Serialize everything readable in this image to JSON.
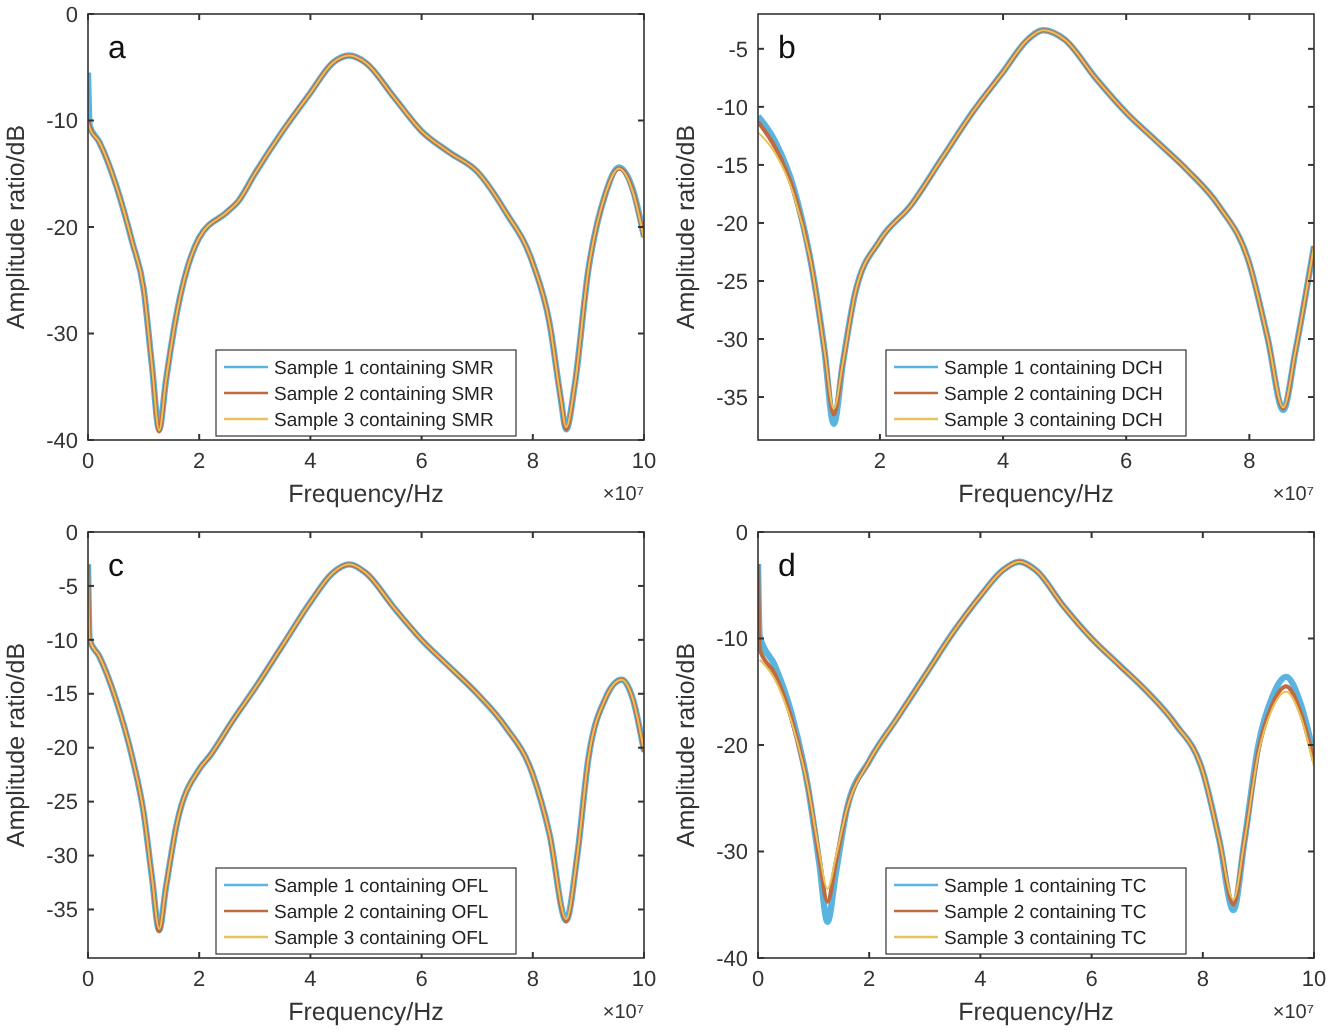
{
  "chart_data": [
    {
      "type": "line",
      "xlabel": "Frequency/Hz",
      "ylabel": "Amplitude ratio/dB",
      "annotations": [
        "a",
        "×10⁷"
      ],
      "legend": "bottom",
      "grid": false,
      "line_style": "solid",
      "xlim": [
        0,
        10
      ],
      "ylim": [
        -40,
        0
      ],
      "xticks": [
        0,
        2,
        4,
        6,
        8,
        10
      ],
      "yticks": [
        -40,
        -30,
        -20,
        -10,
        0
      ],
      "x": [
        0,
        0.03,
        0.2,
        0.5,
        0.8,
        1.0,
        1.15,
        1.28,
        1.4,
        1.6,
        2.0,
        2.5,
        2.7,
        3.0,
        3.5,
        4.0,
        4.4,
        4.7,
        5.0,
        5.5,
        6.0,
        6.5,
        7.0,
        7.5,
        8.0,
        8.3,
        8.5,
        8.6,
        8.75,
        9.0,
        9.3,
        9.55,
        9.8,
        10
      ],
      "series": [
        {
          "name": "Sample 1 containing SMR",
          "color": "#5ab4e0",
          "values": [
            -5.5,
            -10.5,
            -12,
            -16,
            -21.5,
            -25.8,
            -33,
            -39,
            -34.5,
            -28,
            -21,
            -18.6,
            -17.6,
            -15,
            -11,
            -7.4,
            -4.6,
            -3.9,
            -4.6,
            -7.8,
            -11,
            -13,
            -14.8,
            -18.5,
            -23.4,
            -29,
            -36,
            -39,
            -35,
            -24,
            -17,
            -14.4,
            -16.5,
            -20.9
          ]
        },
        {
          "name": "Sample 2 containing SMR",
          "color": "#c06a40",
          "values": [
            -10,
            -10.6,
            -12,
            -16,
            -21.5,
            -25.8,
            -33,
            -39.2,
            -34.5,
            -28,
            -21,
            -18.6,
            -17.6,
            -15,
            -11,
            -7.4,
            -4.6,
            -3.9,
            -4.6,
            -7.8,
            -11,
            -13,
            -14.8,
            -18.5,
            -23.4,
            -29,
            -36,
            -39,
            -35,
            -24,
            -17,
            -14.5,
            -16.6,
            -21
          ]
        },
        {
          "name": "Sample 3 containing SMR",
          "color": "#e8c25a",
          "values": [
            -10.2,
            -10.7,
            -12,
            -16,
            -21.5,
            -25.8,
            -33,
            -39.1,
            -34.5,
            -28,
            -21,
            -18.6,
            -17.6,
            -15,
            -11,
            -7.4,
            -4.6,
            -3.9,
            -4.6,
            -7.8,
            -11,
            -13,
            -14.8,
            -18.5,
            -23.4,
            -29,
            -36,
            -38.8,
            -35,
            -24,
            -17,
            -14.5,
            -16.7,
            -21.1
          ]
        }
      ]
    },
    {
      "type": "line",
      "xlabel": "Frequency/Hz",
      "ylabel": "Amplitude ratio/dB",
      "annotations": [
        "b",
        "×10⁷"
      ],
      "legend": "bottom",
      "grid": false,
      "line_style": "solid",
      "xlim": [
        0.02,
        9.05
      ],
      "ylim": [
        -38.7,
        -2
      ],
      "xticks": [
        2,
        4,
        6,
        8
      ],
      "yticks": [
        -35,
        -30,
        -25,
        -20,
        -15,
        -10,
        -5
      ],
      "x": [
        0.02,
        0.3,
        0.6,
        0.9,
        1.1,
        1.25,
        1.4,
        1.6,
        2.0,
        2.5,
        3.0,
        3.5,
        4.0,
        4.4,
        4.65,
        5.0,
        5.5,
        6.0,
        6.5,
        7.0,
        7.5,
        8.0,
        8.3,
        8.55,
        8.75,
        9.05
      ],
      "series": [
        {
          "name": "Sample 1 containing DCH",
          "color": "#5ab4e0",
          "values": [
            -10.8,
            -13,
            -17,
            -24,
            -31,
            -37.3,
            -32,
            -26,
            -21.5,
            -18.5,
            -14.5,
            -10.5,
            -7,
            -4.2,
            -3.4,
            -4.2,
            -7.5,
            -10.5,
            -13,
            -15.5,
            -18.5,
            -23.5,
            -30,
            -36.1,
            -31,
            -22
          ]
        },
        {
          "name": "Sample 2 containing DCH",
          "color": "#c06a40",
          "values": [
            -11.3,
            -13.5,
            -17.3,
            -24,
            -31,
            -36.5,
            -32,
            -26,
            -21.5,
            -18.5,
            -14.5,
            -10.5,
            -7,
            -4.2,
            -3.4,
            -4.2,
            -7.5,
            -10.5,
            -13,
            -15.5,
            -18.5,
            -23.5,
            -30,
            -36,
            -31,
            -22
          ]
        },
        {
          "name": "Sample 3 containing DCH",
          "color": "#e8c25a",
          "values": [
            -12.2,
            -14,
            -17.6,
            -24,
            -31,
            -36,
            -32,
            -26,
            -21.5,
            -18.5,
            -14.5,
            -10.5,
            -7,
            -4.2,
            -3.4,
            -4.2,
            -7.5,
            -10.5,
            -13,
            -15.5,
            -18.5,
            -23.5,
            -30,
            -35.9,
            -31,
            -22
          ]
        }
      ]
    },
    {
      "type": "line",
      "xlabel": "Frequency/Hz",
      "ylabel": "Amplitude ratio/dB",
      "annotations": [
        "c",
        "×10⁷"
      ],
      "legend": "bottom",
      "grid": false,
      "line_style": "solid",
      "xlim": [
        0,
        10
      ],
      "ylim": [
        -39.5,
        0
      ],
      "xticks": [
        0,
        2,
        4,
        6,
        8,
        10
      ],
      "yticks": [
        -35,
        -30,
        -25,
        -20,
        -15,
        -10,
        -5,
        0
      ],
      "x": [
        0,
        0.03,
        0.2,
        0.5,
        0.8,
        1.0,
        1.15,
        1.28,
        1.4,
        1.6,
        2.0,
        2.2,
        2.6,
        3.0,
        3.5,
        4.0,
        4.4,
        4.7,
        5.0,
        5.5,
        6.0,
        6.5,
        7.0,
        7.5,
        8.0,
        8.3,
        8.6,
        8.8,
        9.0,
        9.3,
        9.6,
        9.8,
        10
      ],
      "series": [
        {
          "name": "Sample 1 containing OFL",
          "color": "#5ab4e0",
          "values": [
            -3,
            -10,
            -11.5,
            -15.5,
            -21,
            -26,
            -32,
            -36.9,
            -33,
            -27,
            -22,
            -20.7,
            -17.5,
            -14.5,
            -10.5,
            -6.5,
            -3.8,
            -3,
            -3.8,
            -7,
            -10,
            -12.5,
            -15,
            -18,
            -22.5,
            -28,
            -36,
            -30,
            -21,
            -15.5,
            -13.7,
            -15.5,
            -20.3
          ]
        },
        {
          "name": "Sample 2 containing OFL",
          "color": "#c06a40",
          "values": [
            -3,
            -10,
            -11.5,
            -15.5,
            -21,
            -26,
            -32,
            -37,
            -33,
            -27,
            -22,
            -20.7,
            -17.5,
            -14.5,
            -10.5,
            -6.5,
            -3.8,
            -3,
            -3.8,
            -7,
            -10,
            -12.5,
            -15,
            -18,
            -22.5,
            -28,
            -36.1,
            -30,
            -21,
            -15.5,
            -13.7,
            -15.5,
            -20.4
          ]
        },
        {
          "name": "Sample 3 containing OFL",
          "color": "#e8c25a",
          "values": [
            -3,
            -10,
            -11.5,
            -15.5,
            -21,
            -26,
            -32,
            -36.8,
            -33,
            -27,
            -22,
            -20.7,
            -17.5,
            -14.5,
            -10.5,
            -6.5,
            -3.8,
            -3,
            -3.8,
            -7,
            -10,
            -12.5,
            -15,
            -18,
            -22.5,
            -28,
            -35.9,
            -30,
            -21,
            -15.5,
            -13.7,
            -15.5,
            -20.3
          ]
        }
      ]
    },
    {
      "type": "line",
      "xlabel": "Frequency/Hz",
      "ylabel": "Amplitude ratio/dB",
      "annotations": [
        "d",
        "×10⁷"
      ],
      "legend": "bottom",
      "grid": false,
      "line_style": "solid",
      "xlim": [
        0,
        10
      ],
      "ylim": [
        -40,
        0
      ],
      "xticks": [
        0,
        2,
        4,
        6,
        8,
        10
      ],
      "yticks": [
        -40,
        -30,
        -20,
        -10,
        0
      ],
      "x": [
        0,
        0.03,
        0.3,
        0.6,
        0.9,
        1.1,
        1.25,
        1.4,
        1.6,
        2.0,
        2.5,
        3.0,
        3.5,
        4.0,
        4.4,
        4.7,
        5.0,
        5.5,
        6.0,
        6.5,
        7.0,
        7.5,
        8.0,
        8.3,
        8.55,
        8.75,
        9.0,
        9.25,
        9.5,
        9.75,
        10
      ],
      "series": [
        {
          "name": "Sample 1 containing TC",
          "color": "#5ab4e0",
          "values": [
            -3,
            -9.8,
            -12.5,
            -17,
            -24,
            -31,
            -36.6,
            -32,
            -26,
            -21.5,
            -17.5,
            -13.5,
            -9.5,
            -6,
            -3.6,
            -2.8,
            -3.6,
            -7,
            -10,
            -12.5,
            -15,
            -18,
            -22.5,
            -29,
            -35.5,
            -29,
            -20,
            -15.5,
            -13.6,
            -16,
            -21
          ]
        },
        {
          "name": "Sample 2 containing TC",
          "color": "#c06a40",
          "values": [
            -3,
            -11,
            -13.3,
            -17.5,
            -24,
            -30.5,
            -34.7,
            -31,
            -26,
            -21.5,
            -17.5,
            -13.5,
            -9.5,
            -6,
            -3.6,
            -2.8,
            -3.6,
            -7,
            -10,
            -12.5,
            -15,
            -18,
            -22.5,
            -29,
            -35,
            -29,
            -20.5,
            -16.2,
            -14.5,
            -16.8,
            -21.5
          ]
        },
        {
          "name": "Sample 3 containing TC",
          "color": "#e8c25a",
          "values": [
            null,
            -12,
            -13.8,
            -17.8,
            -24,
            -30,
            -33.5,
            -30.5,
            -26,
            -21.5,
            -17.5,
            -13.5,
            -9.5,
            -6,
            -3.6,
            -2.8,
            -3.6,
            -7,
            -10,
            -12.5,
            -15,
            -18,
            -22.5,
            -29,
            -34.5,
            -29,
            -20.8,
            -16.6,
            -15,
            -17.2,
            -22
          ]
        }
      ]
    }
  ]
}
